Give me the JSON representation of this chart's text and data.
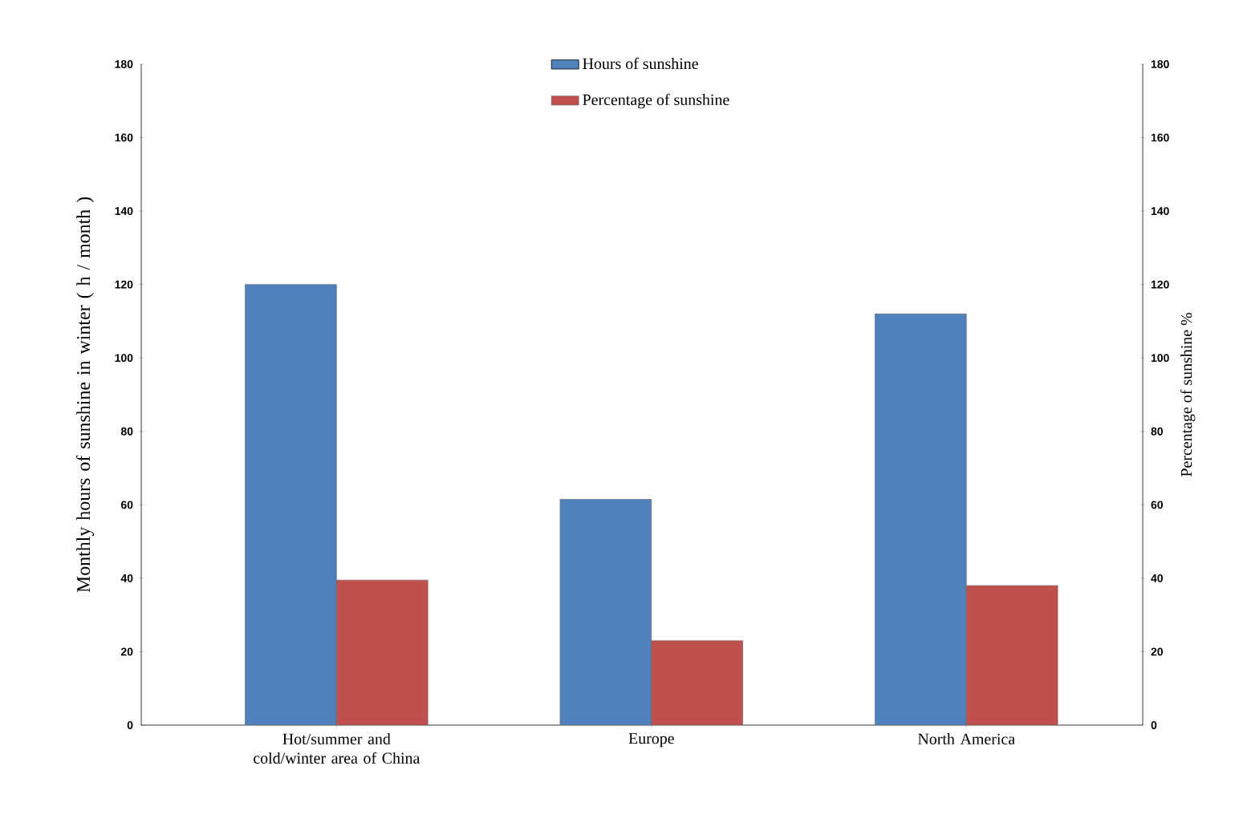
{
  "chart_data": {
    "type": "bar",
    "categories": [
      "Hot/summer and cold/winter area of China",
      "Europe",
      "North America"
    ],
    "series": [
      {
        "name": "Hours of sunshine",
        "color": "#4f81bd",
        "values": [
          120,
          61.5,
          112
        ]
      },
      {
        "name": "Percentage of sunshine",
        "color": "#c0504d",
        "values": [
          39.5,
          23,
          38
        ],
        "axis": "y2"
      }
    ],
    "ylabel": "Monthly hours of sunshine in winter ( h / month )",
    "y2label": "Percentage of sunshine %",
    "ylim": [
      0,
      180
    ],
    "yticks": [
      0,
      20,
      40,
      60,
      80,
      100,
      120,
      140,
      160,
      180
    ],
    "y2lim": [
      0,
      180
    ],
    "y2ticks": [
      0,
      20,
      40,
      60,
      80,
      100,
      120,
      140,
      160,
      180
    ],
    "legend": "top"
  }
}
